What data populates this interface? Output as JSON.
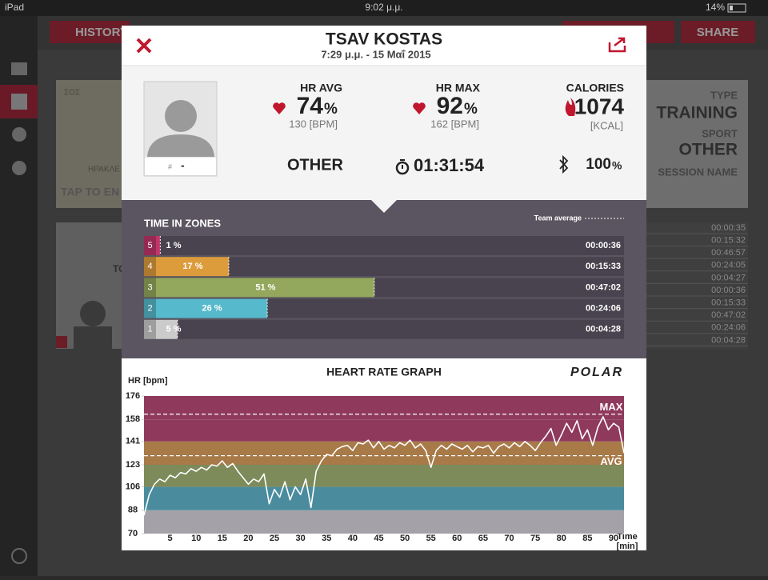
{
  "status_bar": {
    "device": "iPad",
    "time": "9:02 μ.μ.",
    "battery": "14%"
  },
  "app": {
    "history_button": "HISTORY",
    "share_button": "SHARE",
    "map_hint": "TAP TO EN",
    "map_labels": [
      "ΣΟΣ",
      "ΗΡΑΚΛΕ"
    ],
    "type_label": "TYPE",
    "type_value": "TRAINING",
    "sport_label": "SPORT",
    "sport_value": "OTHER",
    "session_name_label": "SESSION NAME",
    "team_label": "TO",
    "zone_times": [
      "00:00:35",
      "00:15:32",
      "00:46:57",
      "00:24:05",
      "00:04:27",
      "00:00:36",
      "00:15:33",
      "00:47:02",
      "00:24:06",
      "00:04:28"
    ]
  },
  "modal": {
    "name": "TSAV KOSTAS",
    "date": "7:29 μ.μ. - 15 Μαΐ 2015",
    "player_number_prefix": "#",
    "player_number": "-",
    "hr_avg": {
      "label": "HR AVG",
      "value": "74",
      "unit": "%",
      "detail": "130 [BPM]"
    },
    "hr_max": {
      "label": "HR MAX",
      "value": "92",
      "unit": "%",
      "detail": "162 [BPM]"
    },
    "calories": {
      "label": "CALORIES",
      "value": "1074",
      "detail": "[KCAL]"
    },
    "sport": "OTHER",
    "duration": "01:31:54",
    "battery": "100",
    "battery_unit": "%"
  },
  "chart_data": [
    {
      "type": "hbar",
      "title": "TIME IN ZONES",
      "legend": "Team average",
      "categories": [
        "5",
        "4",
        "3",
        "2",
        "1"
      ],
      "values": [
        1,
        17,
        51,
        26,
        5
      ],
      "value_labels": [
        "1 %",
        "17 %",
        "51 %",
        "26 %",
        "5 %"
      ],
      "durations": [
        "00:00:36",
        "00:15:33",
        "00:47:02",
        "00:24:06",
        "00:04:28"
      ],
      "colors": [
        "#c0356a",
        "#dd9c3c",
        "#93a85c",
        "#56b9cc",
        "#cbcbcb"
      ]
    },
    {
      "type": "line",
      "title": "HEART RATE GRAPH",
      "logo": "POLAR",
      "y_label": "HR [bpm]",
      "x_label": [
        "Time",
        "[min]"
      ],
      "xlim": [
        0,
        92
      ],
      "xticks": [
        5,
        10,
        15,
        20,
        25,
        30,
        35,
        40,
        45,
        50,
        55,
        60,
        65,
        70,
        75,
        80,
        85,
        90
      ],
      "ylim": [
        70,
        176
      ],
      "yticks": [
        70,
        88,
        106,
        123,
        141,
        158,
        176
      ],
      "band_colors": [
        "#a4a2a8",
        "#4a8c9e",
        "#7d8a5a",
        "#a87a48",
        "#8f3a5c",
        "#8f3a5c"
      ],
      "reference_lines": [
        {
          "value": 162,
          "label": "MAX"
        },
        {
          "value": 130,
          "label": "AVG"
        }
      ],
      "color": "#ffffff",
      "x": [
        0,
        1,
        2,
        3,
        4,
        5,
        6,
        7,
        8,
        9,
        10,
        11,
        12,
        13,
        14,
        15,
        16,
        17,
        18,
        19,
        20,
        21,
        22,
        23,
        24,
        25,
        26,
        27,
        28,
        29,
        30,
        31,
        32,
        33,
        34,
        35,
        36,
        37,
        38,
        39,
        40,
        41,
        42,
        43,
        44,
        45,
        46,
        47,
        48,
        49,
        50,
        51,
        52,
        53,
        54,
        55,
        56,
        57,
        58,
        59,
        60,
        61,
        62,
        63,
        64,
        65,
        66,
        67,
        68,
        69,
        70,
        71,
        72,
        73,
        74,
        75,
        76,
        77,
        78,
        79,
        80,
        81,
        82,
        83,
        84,
        85,
        86,
        87,
        88,
        89,
        90,
        91,
        92
      ],
      "values": [
        84,
        100,
        108,
        112,
        110,
        115,
        113,
        117,
        116,
        120,
        118,
        121,
        119,
        123,
        122,
        126,
        121,
        124,
        118,
        113,
        108,
        112,
        110,
        116,
        93,
        104,
        98,
        110,
        96,
        106,
        100,
        112,
        90,
        118,
        126,
        131,
        130,
        135,
        137,
        138,
        134,
        140,
        139,
        142,
        136,
        141,
        135,
        138,
        136,
        140,
        138,
        142,
        136,
        139,
        134,
        121,
        134,
        138,
        135,
        139,
        137,
        135,
        138,
        133,
        137,
        136,
        138,
        132,
        137,
        139,
        136,
        140,
        137,
        141,
        138,
        134,
        140,
        145,
        151,
        138,
        146,
        155,
        148,
        157,
        143,
        150,
        138,
        152,
        160,
        150,
        155,
        152,
        132
      ]
    }
  ]
}
